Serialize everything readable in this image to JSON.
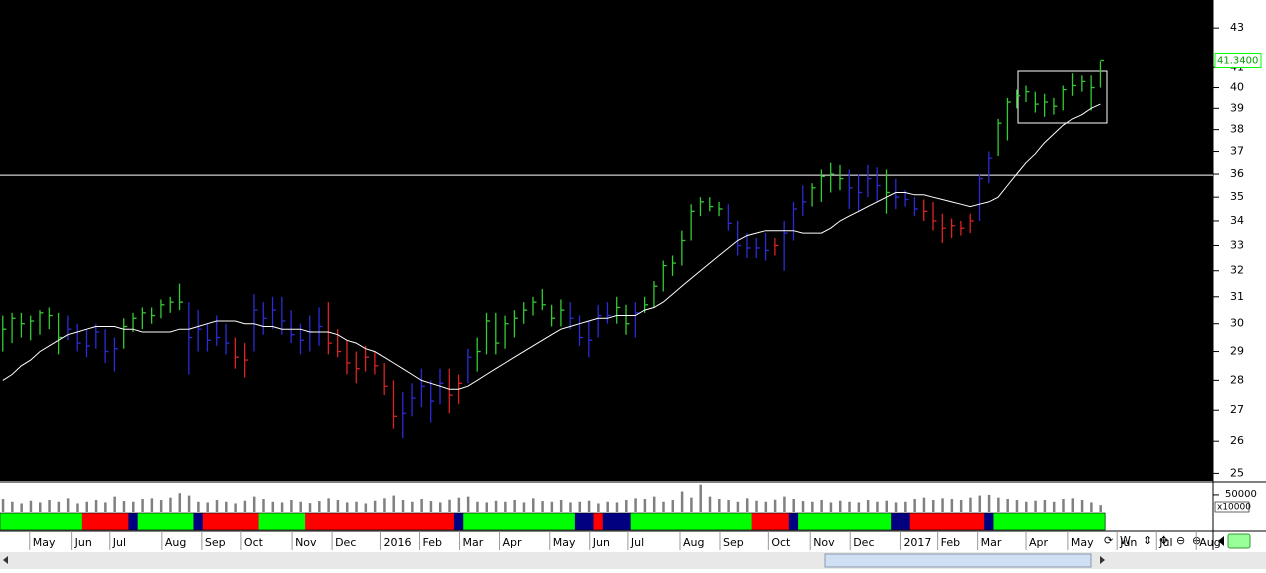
{
  "chart_data": {
    "type": "ohlc",
    "log_y": true,
    "ylim": [
      24.8,
      44.5
    ],
    "yticks": [
      25,
      26,
      27,
      28,
      29,
      30,
      31,
      32,
      33,
      34,
      35,
      36,
      37,
      38,
      39,
      40,
      41,
      43
    ],
    "xlim": [
      -0.3,
      130.1
    ],
    "xticks": [
      {
        "value": 2.9,
        "label": "May"
      },
      {
        "value": 7.4,
        "label": "Jun"
      },
      {
        "value": 11.5,
        "label": "Jul"
      },
      {
        "value": 17.1,
        "label": "Aug"
      },
      {
        "value": 21.4,
        "label": "Sep"
      },
      {
        "value": 25.6,
        "label": "Oct"
      },
      {
        "value": 31.1,
        "label": "Nov"
      },
      {
        "value": 35.4,
        "label": "Dec"
      },
      {
        "value": 40.6,
        "label": "2016"
      },
      {
        "value": 44.8,
        "label": "Feb"
      },
      {
        "value": 49.1,
        "label": "Mar"
      },
      {
        "value": 53.4,
        "label": "Apr"
      },
      {
        "value": 58.8,
        "label": "May"
      },
      {
        "value": 63.1,
        "label": "Jun"
      },
      {
        "value": 67.2,
        "label": "Jul"
      },
      {
        "value": 72.8,
        "label": "Aug"
      },
      {
        "value": 77.1,
        "label": "Sep"
      },
      {
        "value": 82.3,
        "label": "Oct"
      },
      {
        "value": 86.8,
        "label": "Nov"
      },
      {
        "value": 91.1,
        "label": "Dec"
      },
      {
        "value": 96.5,
        "label": "2017"
      },
      {
        "value": 100.5,
        "label": "Feb"
      },
      {
        "value": 104.8,
        "label": "Mar"
      },
      {
        "value": 110.0,
        "label": "Apr"
      },
      {
        "value": 114.5,
        "label": "May"
      },
      {
        "value": 119.8,
        "label": "Jun"
      },
      {
        "value": 124.0,
        "label": "Jul"
      },
      {
        "value": 128.3,
        "label": "Aug"
      }
    ],
    "high": [
      30.3,
      30.4,
      30.4,
      30.3,
      30.5,
      30.6,
      30.4,
      30.3,
      30.0,
      29.8,
      30.0,
      29.8,
      29.5,
      30.2,
      30.4,
      30.6,
      30.6,
      30.9,
      31.0,
      31.5,
      30.8,
      30.5,
      30.0,
      30.3,
      30.0,
      29.5,
      29.3,
      31.1,
      30.8,
      31.0,
      31.0,
      30.5,
      30.0,
      30.3,
      30.6,
      30.8,
      29.8,
      29.4,
      29.0,
      29.2,
      29.0,
      28.6,
      28.0,
      27.6,
      27.9,
      28.4,
      28.0,
      28.4,
      28.4,
      28.2,
      29.1,
      29.5,
      30.4,
      30.4,
      30.3,
      30.5,
      30.8,
      31.0,
      31.3,
      30.7,
      30.9,
      30.8,
      30.3,
      30.1,
      30.7,
      30.8,
      31.0,
      30.7,
      30.8,
      31.0,
      31.6,
      32.4,
      32.6,
      33.6,
      34.7,
      35.0,
      35.0,
      34.8,
      34.7,
      34.0,
      33.5,
      33.3,
      33.5,
      33.3,
      34.0,
      34.8,
      35.5,
      35.6,
      36.2,
      36.5,
      36.4,
      36.2,
      36.0,
      36.4,
      36.3,
      36.2,
      35.8,
      35.3,
      35.0,
      34.9,
      34.8,
      34.3,
      34.1,
      34.0,
      34.3,
      36.0,
      37.0,
      38.5,
      39.5,
      39.9,
      40.1,
      39.8,
      39.7,
      39.5,
      40.1,
      40.7,
      40.6,
      40.6,
      41.3
    ],
    "low": [
      29.0,
      29.3,
      29.5,
      29.4,
      29.6,
      29.8,
      28.9,
      29.4,
      29.0,
      28.8,
      29.1,
      28.6,
      28.3,
      29.1,
      29.7,
      29.8,
      30.0,
      30.2,
      30.4,
      30.5,
      28.2,
      29.0,
      29.0,
      29.2,
      28.9,
      28.4,
      28.1,
      29.0,
      29.6,
      29.8,
      29.6,
      29.3,
      28.9,
      29.0,
      29.2,
      28.9,
      28.8,
      28.2,
      27.9,
      28.3,
      28.2,
      27.5,
      26.4,
      26.1,
      26.8,
      27.1,
      26.6,
      27.2,
      26.9,
      27.2,
      27.9,
      28.3,
      28.9,
      28.9,
      29.1,
      29.5,
      30.0,
      30.3,
      30.5,
      29.9,
      29.9,
      29.8,
      29.2,
      28.8,
      29.5,
      30.0,
      30.0,
      29.6,
      29.5,
      30.4,
      30.6,
      31.2,
      31.8,
      32.2,
      33.2,
      34.2,
      34.4,
      34.2,
      33.6,
      32.6,
      32.5,
      32.5,
      32.4,
      32.6,
      32.0,
      33.2,
      34.2,
      34.6,
      34.8,
      35.2,
      35.3,
      34.5,
      34.4,
      35.0,
      34.8,
      34.3,
      34.5,
      34.6,
      34.2,
      34.0,
      33.6,
      33.1,
      33.3,
      33.4,
      33.5,
      34.0,
      35.6,
      36.8,
      37.5,
      39.0,
      39.3,
      38.8,
      38.6,
      38.7,
      38.9,
      39.6,
      39.8,
      38.9,
      40.0
    ],
    "close": [
      29.8,
      30.2,
      30.0,
      30.1,
      30.4,
      30.3,
      29.5,
      29.8,
      29.3,
      29.2,
      29.7,
      29.0,
      29.1,
      29.9,
      30.2,
      30.4,
      30.3,
      30.7,
      30.8,
      30.8,
      29.5,
      29.8,
      29.4,
      29.5,
      29.3,
      28.8,
      28.7,
      30.5,
      30.2,
      30.5,
      30.1,
      29.6,
      29.4,
      29.7,
      29.9,
      29.3,
      29.0,
      28.6,
      28.4,
      28.8,
      28.5,
      27.8,
      26.8,
      26.9,
      27.4,
      27.8,
      27.3,
      27.9,
      27.5,
      27.9,
      28.8,
      29.0,
      30.1,
      29.3,
      30.0,
      30.2,
      30.5,
      30.8,
      30.7,
      30.2,
      30.5,
      30.2,
      29.5,
      29.4,
      30.3,
      30.3,
      30.6,
      30.0,
      30.4,
      30.7,
      31.4,
      32.2,
      32.3,
      33.2,
      34.4,
      34.8,
      34.6,
      34.5,
      33.9,
      33.0,
      32.9,
      32.9,
      32.8,
      33.0,
      33.5,
      34.5,
      34.8,
      35.4,
      35.9,
      36.0,
      35.8,
      35.4,
      35.2,
      35.8,
      35.5,
      35.2,
      35.0,
      34.9,
      34.5,
      34.4,
      34.0,
      33.7,
      33.8,
      33.7,
      34.0,
      35.8,
      36.7,
      38.3,
      39.3,
      39.6,
      39.8,
      39.2,
      39.3,
      39.1,
      39.9,
      40.1,
      40.3,
      40.0,
      41.34
    ],
    "bar_colors": [
      "#33cc33",
      "#33cc33",
      "#33cc33",
      "#33cc33",
      "#33cc33",
      "#33cc33",
      "#33cc33",
      "#2b2bd9",
      "#2b2bd9",
      "#2b2bd9",
      "#2b2bd9",
      "#2b2bd9",
      "#2b2bd9",
      "#33cc33",
      "#33cc33",
      "#33cc33",
      "#33cc33",
      "#33cc33",
      "#33cc33",
      "#33cc33",
      "#2b2bd9",
      "#2b2bd9",
      "#2b2bd9",
      "#2b2bd9",
      "#2b2bd9",
      "#dd2222",
      "#dd2222",
      "#2b2bd9",
      "#2b2bd9",
      "#2b2bd9",
      "#2b2bd9",
      "#2b2bd9",
      "#2b2bd9",
      "#2b2bd9",
      "#2b2bd9",
      "#dd2222",
      "#dd2222",
      "#dd2222",
      "#dd2222",
      "#dd2222",
      "#dd2222",
      "#dd2222",
      "#dd2222",
      "#2b2bd9",
      "#2b2bd9",
      "#2b2bd9",
      "#2b2bd9",
      "#2b2bd9",
      "#dd2222",
      "#dd2222",
      "#2b2bd9",
      "#33cc33",
      "#33cc33",
      "#33cc33",
      "#33cc33",
      "#33cc33",
      "#33cc33",
      "#33cc33",
      "#33cc33",
      "#33cc33",
      "#33cc33",
      "#2b2bd9",
      "#2b2bd9",
      "#2b2bd9",
      "#2b2bd9",
      "#2b2bd9",
      "#33cc33",
      "#33cc33",
      "#2b2bd9",
      "#33cc33",
      "#33cc33",
      "#33cc33",
      "#33cc33",
      "#33cc33",
      "#33cc33",
      "#33cc33",
      "#33cc33",
      "#33cc33",
      "#2b2bd9",
      "#2b2bd9",
      "#2b2bd9",
      "#2b2bd9",
      "#2b2bd9",
      "#dd2222",
      "#2b2bd9",
      "#2b2bd9",
      "#2b2bd9",
      "#33cc33",
      "#33cc33",
      "#33cc33",
      "#33cc33",
      "#2b2bd9",
      "#2b2bd9",
      "#2b2bd9",
      "#2b2bd9",
      "#33cc33",
      "#2b2bd9",
      "#2b2bd9",
      "#2b2bd9",
      "#dd2222",
      "#dd2222",
      "#dd2222",
      "#dd2222",
      "#dd2222",
      "#dd2222",
      "#2b2bd9",
      "#2b2bd9",
      "#33cc33",
      "#33cc33",
      "#33cc33",
      "#33cc33",
      "#33cc33",
      "#33cc33",
      "#33cc33",
      "#33cc33",
      "#33cc33",
      "#33cc33",
      "#33cc33",
      "#33cc33"
    ],
    "ma": {
      "color": "#ffffff",
      "values": [
        28.0,
        28.2,
        28.5,
        28.7,
        29.0,
        29.2,
        29.4,
        29.6,
        29.7,
        29.8,
        29.9,
        29.9,
        29.9,
        29.8,
        29.8,
        29.7,
        29.7,
        29.7,
        29.7,
        29.8,
        29.8,
        29.9,
        30.0,
        30.1,
        30.1,
        30.1,
        30.0,
        30.0,
        29.9,
        29.9,
        29.8,
        29.8,
        29.8,
        29.7,
        29.7,
        29.7,
        29.6,
        29.4,
        29.3,
        29.1,
        29.0,
        28.8,
        28.6,
        28.4,
        28.2,
        28.0,
        27.9,
        27.8,
        27.7,
        27.7,
        27.8,
        28.0,
        28.2,
        28.4,
        28.6,
        28.8,
        29.0,
        29.2,
        29.4,
        29.6,
        29.8,
        29.9,
        30.0,
        30.1,
        30.2,
        30.2,
        30.3,
        30.3,
        30.3,
        30.5,
        30.6,
        30.8,
        31.1,
        31.4,
        31.7,
        32.0,
        32.3,
        32.6,
        32.9,
        33.2,
        33.4,
        33.5,
        33.6,
        33.6,
        33.6,
        33.6,
        33.5,
        33.5,
        33.5,
        33.7,
        34.0,
        34.2,
        34.4,
        34.6,
        34.8,
        35.0,
        35.2,
        35.2,
        35.1,
        35.1,
        35.0,
        34.9,
        34.8,
        34.7,
        34.6,
        34.7,
        34.8,
        35.0,
        35.5,
        36.0,
        36.5,
        36.9,
        37.4,
        37.8,
        38.2,
        38.5,
        38.7,
        39.0,
        39.2
      ]
    },
    "hline": {
      "value": 35.95,
      "color": "#ffffff"
    },
    "last_label": "41.3400",
    "last_label_color": "#00ff00",
    "volume": {
      "color": "#808080",
      "ylim": [
        0,
        82000
      ],
      "yticks": [
        50000
      ],
      "unit_label": "x10000",
      "values": [
        38000,
        30000,
        25000,
        33000,
        28000,
        35000,
        30000,
        40000,
        25000,
        30000,
        35000,
        28000,
        45000,
        32000,
        30000,
        38000,
        40000,
        35000,
        42000,
        55000,
        48000,
        30000,
        28000,
        35000,
        30000,
        25000,
        33000,
        45000,
        38000,
        30000,
        28000,
        35000,
        30000,
        26000,
        32000,
        40000,
        35000,
        28000,
        30000,
        25000,
        33000,
        40000,
        48000,
        35000,
        30000,
        38000,
        32000,
        28000,
        36000,
        42000,
        45000,
        30000,
        28000,
        33000,
        30000,
        35000,
        28000,
        40000,
        32000,
        30000,
        35000,
        28000,
        30000,
        33000,
        25000,
        30000,
        28000,
        35000,
        40000,
        38000,
        45000,
        30000,
        35000,
        60000,
        42000,
        80000,
        45000,
        38000,
        35000,
        30000,
        40000,
        33000,
        30000,
        36000,
        45000,
        38000,
        32000,
        30000,
        35000,
        28000,
        33000,
        30000,
        28000,
        35000,
        30000,
        33000,
        28000,
        30000,
        38000,
        42000,
        35000,
        40000,
        38000,
        35000,
        42000,
        48000,
        50000,
        42000,
        38000,
        35000,
        30000,
        33000,
        35000,
        30000,
        38000,
        40000,
        35000,
        28000,
        20000
      ]
    },
    "band_colors": [
      "#00ff00",
      "#00ff00",
      "#00ff00",
      "#00ff00",
      "#00ff00",
      "#00ff00",
      "#00ff00",
      "#00ff00",
      "#00ff00",
      "#ff0000",
      "#ff0000",
      "#ff0000",
      "#ff0000",
      "#ff0000",
      "#000080",
      "#00ff00",
      "#00ff00",
      "#00ff00",
      "#00ff00",
      "#00ff00",
      "#00ff00",
      "#000080",
      "#ff0000",
      "#ff0000",
      "#ff0000",
      "#ff0000",
      "#ff0000",
      "#ff0000",
      "#00ff00",
      "#00ff00",
      "#00ff00",
      "#00ff00",
      "#00ff00",
      "#ff0000",
      "#ff0000",
      "#ff0000",
      "#ff0000",
      "#ff0000",
      "#ff0000",
      "#ff0000",
      "#ff0000",
      "#ff0000",
      "#ff0000",
      "#ff0000",
      "#ff0000",
      "#ff0000",
      "#ff0000",
      "#ff0000",
      "#ff0000",
      "#000080",
      "#00ff00",
      "#00ff00",
      "#00ff00",
      "#00ff00",
      "#00ff00",
      "#00ff00",
      "#00ff00",
      "#00ff00",
      "#00ff00",
      "#00ff00",
      "#00ff00",
      "#00ff00",
      "#000080",
      "#000080",
      "#ff0000",
      "#000080",
      "#000080",
      "#000080",
      "#00ff00",
      "#00ff00",
      "#00ff00",
      "#00ff00",
      "#00ff00",
      "#00ff00",
      "#00ff00",
      "#00ff00",
      "#00ff00",
      "#00ff00",
      "#00ff00",
      "#00ff00",
      "#00ff00",
      "#ff0000",
      "#ff0000",
      "#ff0000",
      "#ff0000",
      "#000080",
      "#00ff00",
      "#00ff00",
      "#00ff00",
      "#00ff00",
      "#00ff00",
      "#00ff00",
      "#00ff00",
      "#00ff00",
      "#00ff00",
      "#00ff00",
      "#000080",
      "#000080",
      "#ff0000",
      "#ff0000",
      "#ff0000",
      "#ff0000",
      "#ff0000",
      "#ff0000",
      "#ff0000",
      "#ff0000",
      "#000080",
      "#00ff00",
      "#00ff00",
      "#00ff00",
      "#00ff00",
      "#00ff00",
      "#00ff00",
      "#00ff00",
      "#00ff00",
      "#00ff00",
      "#00ff00",
      "#00ff00",
      "#00ff00"
    ]
  },
  "toolbar": {
    "label": "W"
  }
}
